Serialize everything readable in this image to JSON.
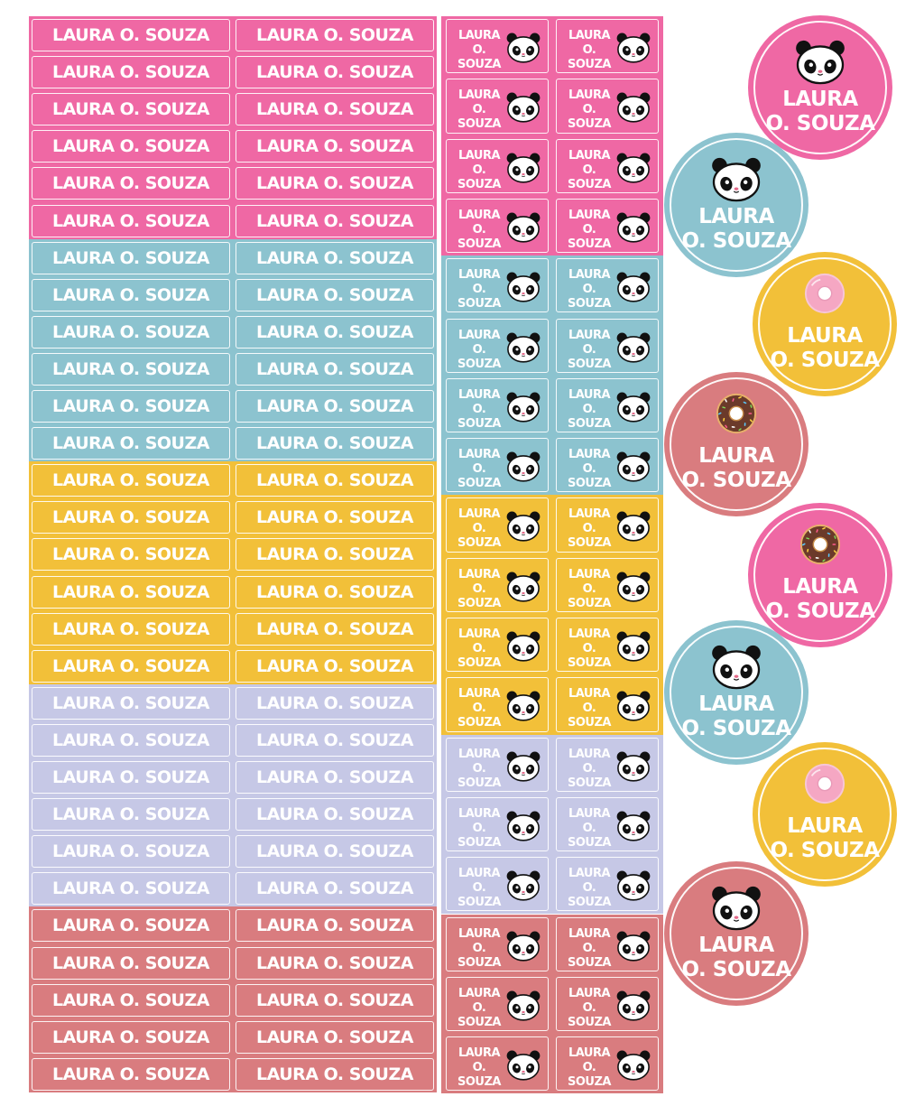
{
  "label_text": "LAURA O. SOUZA",
  "square_label": {
    "line1": "LAURA",
    "line2": "O. SOUZA"
  },
  "round_label": {
    "line1": "LAURA",
    "line2": "O. SOUZA"
  },
  "colors": {
    "pink": "#ef68a4",
    "blue": "#8cc3cf",
    "yellow": "#f2c039",
    "lavender": "#c6c8e6",
    "rose": "#d97c7f",
    "panda_black": "#111111",
    "donut_pink": "#f5a7c3",
    "donut_chocolate": "#6b3a2a"
  },
  "rectangle_label_groups": [
    {
      "color": "pink",
      "rows": 6
    },
    {
      "color": "blue",
      "rows": 6
    },
    {
      "color": "yellow",
      "rows": 6
    },
    {
      "color": "lavender",
      "rows": 6
    },
    {
      "color": "rose",
      "rows": 5
    }
  ],
  "square_label_groups": [
    {
      "color": "pink",
      "rows": 4,
      "icon": "panda-icon"
    },
    {
      "color": "blue",
      "rows": 4,
      "icon": "panda-icon"
    },
    {
      "color": "yellow",
      "rows": 4,
      "icon": "panda-icon"
    },
    {
      "color": "lavender",
      "rows": 3,
      "icon": "panda-icon"
    },
    {
      "color": "rose",
      "rows": 3,
      "icon": "panda-icon"
    }
  ],
  "round_labels": [
    {
      "color": "pink",
      "icon": "panda-icon"
    },
    {
      "color": "blue",
      "icon": "panda-icon"
    },
    {
      "color": "yellow",
      "icon": "pink-donut-icon"
    },
    {
      "color": "rose",
      "icon": "chocolate-donut-icon"
    },
    {
      "color": "pink",
      "icon": "chocolate-donut-icon"
    },
    {
      "color": "blue",
      "icon": "panda-icon"
    },
    {
      "color": "yellow",
      "icon": "pink-donut-icon"
    },
    {
      "color": "rose",
      "icon": "panda-icon"
    }
  ]
}
